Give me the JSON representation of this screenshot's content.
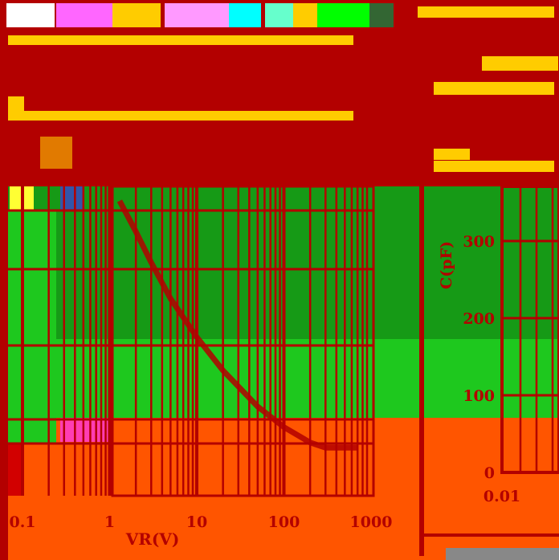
{
  "chart_data": [
    {
      "type": "line",
      "title": "",
      "xlabel": "VR(V)",
      "ylabel": "",
      "xscale": "log",
      "xlim": [
        0.1,
        1000
      ],
      "x_tick_labels": [
        "0.1",
        "1",
        "10",
        "100",
        "1000"
      ],
      "x_ticks": [
        0.1,
        1,
        10,
        100,
        1000
      ],
      "grid": true,
      "series": [
        {
          "values_x": [
            1.3,
            2,
            3,
            5,
            10,
            20,
            50,
            100,
            200,
            300,
            500,
            700
          ],
          "values_y": [
            1.0,
            0.88,
            0.76,
            0.62,
            0.47,
            0.34,
            0.2,
            0.12,
            0.06,
            0.04,
            0.04,
            0.04
          ]
        }
      ],
      "colors": {
        "curve": "#b30000",
        "grid": "#b30000"
      }
    },
    {
      "type": "line",
      "title": "",
      "xlabel": "",
      "ylabel": "C(pF)",
      "y_tick_labels": [
        "0",
        "100",
        "200",
        "300"
      ],
      "y_ticks": [
        0,
        100,
        200,
        300
      ],
      "x_tick_labels": [
        "0.01"
      ],
      "ylim": [
        0,
        350
      ],
      "grid": true
    }
  ],
  "colors": {
    "background": "#b30000",
    "green_dark": "#169a16",
    "green_light": "#1ec81e",
    "orange": "#ff5500",
    "yellow": "#ffcc00"
  }
}
